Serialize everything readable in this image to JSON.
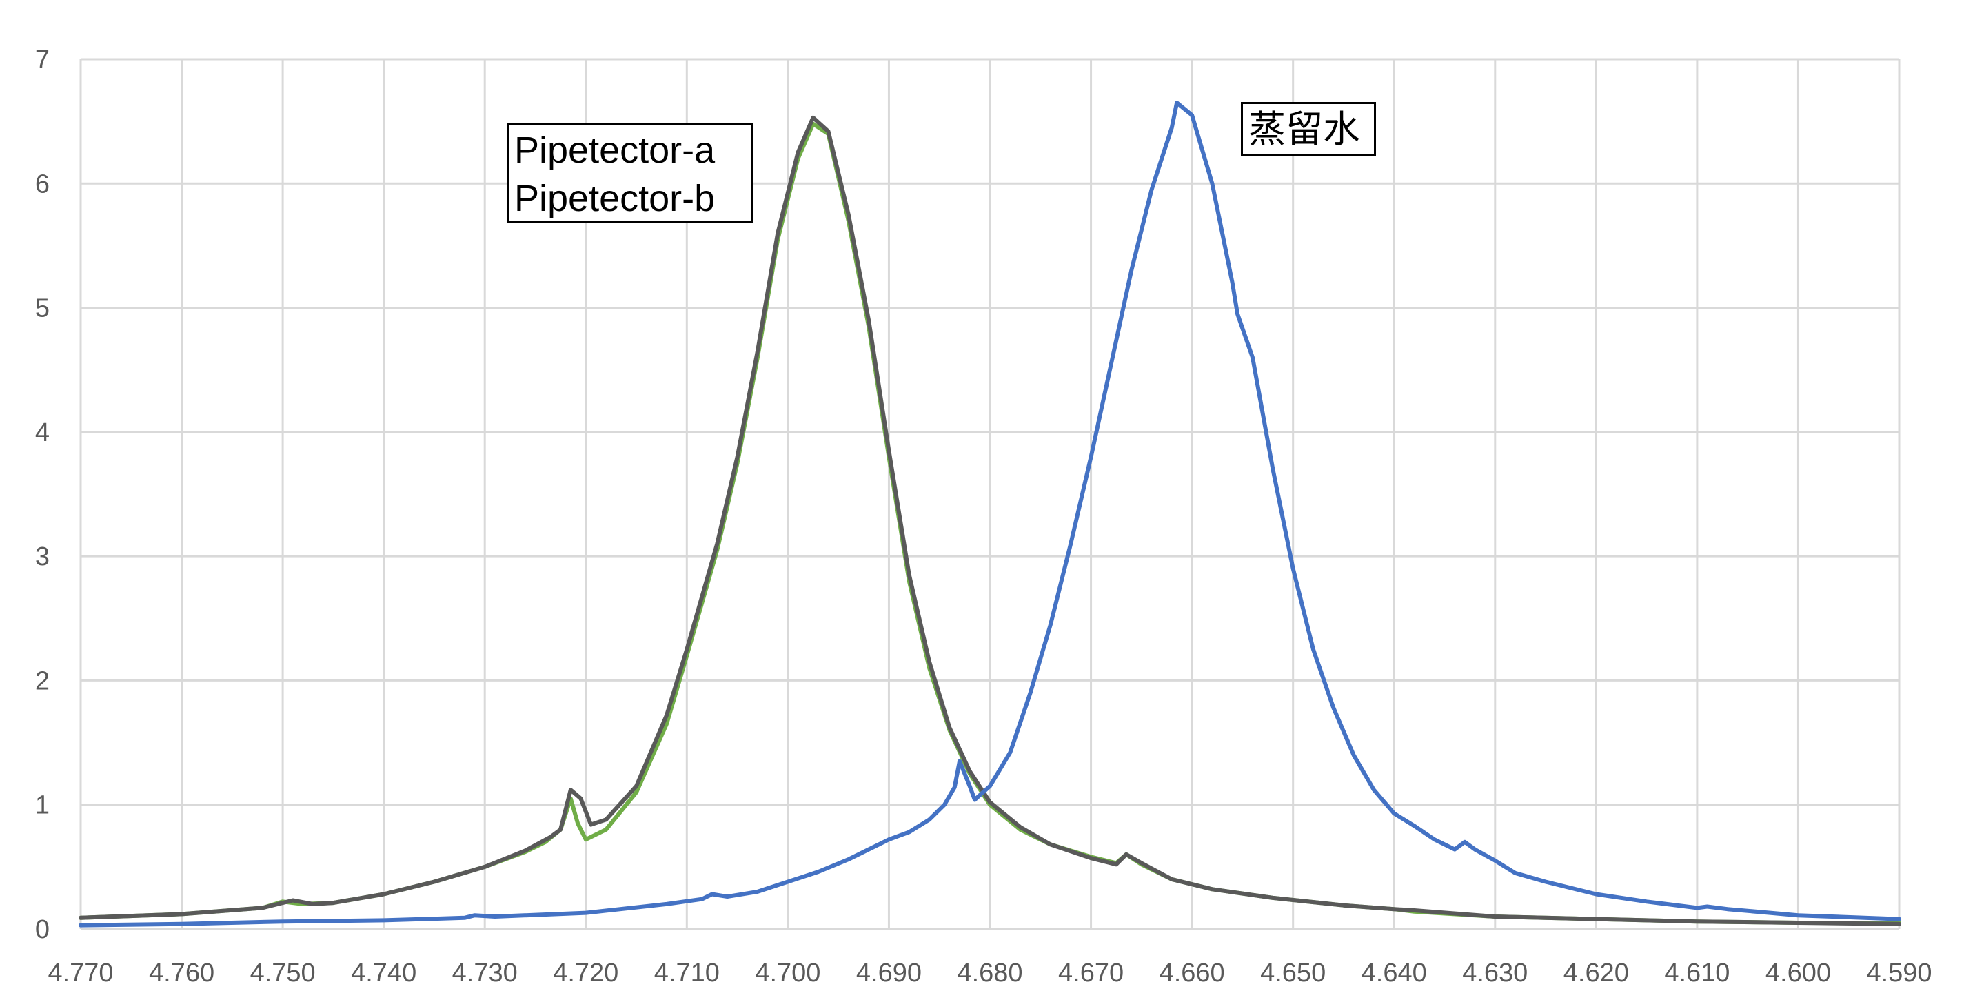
{
  "chart_data": {
    "type": "line",
    "title": "",
    "xlabel": "",
    "ylabel": "",
    "xlim": [
      4.77,
      4.59
    ],
    "ylim": [
      0,
      7
    ],
    "x_reversed": true,
    "grid": true,
    "x_ticks": [
      "4.770",
      "4.760",
      "4.750",
      "4.740",
      "4.730",
      "4.720",
      "4.710",
      "4.700",
      "4.690",
      "4.680",
      "4.670",
      "4.660",
      "4.650",
      "4.640",
      "4.630",
      "4.620",
      "4.610",
      "4.600",
      "4.590"
    ],
    "y_ticks": [
      "0",
      "1",
      "2",
      "3",
      "4",
      "5",
      "6",
      "7"
    ],
    "annotations": [
      {
        "lines": [
          "Pipetector-a",
          "Pipetector-b"
        ]
      },
      {
        "lines": [
          "蒸留水"
        ]
      }
    ],
    "series": [
      {
        "name": "Pipetector-a",
        "color": "#70ad47",
        "points": [
          [
            4.77,
            0.09
          ],
          [
            4.76,
            0.12
          ],
          [
            4.752,
            0.17
          ],
          [
            4.75,
            0.22
          ],
          [
            4.748,
            0.2
          ],
          [
            4.745,
            0.21
          ],
          [
            4.74,
            0.28
          ],
          [
            4.735,
            0.38
          ],
          [
            4.73,
            0.5
          ],
          [
            4.726,
            0.62
          ],
          [
            4.724,
            0.7
          ],
          [
            4.7225,
            0.8
          ],
          [
            4.7215,
            1.05
          ],
          [
            4.7208,
            0.85
          ],
          [
            4.72,
            0.72
          ],
          [
            4.718,
            0.8
          ],
          [
            4.715,
            1.1
          ],
          [
            4.712,
            1.65
          ],
          [
            4.71,
            2.2
          ],
          [
            4.707,
            3.05
          ],
          [
            4.705,
            3.75
          ],
          [
            4.703,
            4.6
          ],
          [
            4.701,
            5.55
          ],
          [
            4.699,
            6.2
          ],
          [
            4.6975,
            6.48
          ],
          [
            4.696,
            6.4
          ],
          [
            4.694,
            5.7
          ],
          [
            4.692,
            4.85
          ],
          [
            4.69,
            3.8
          ],
          [
            4.688,
            2.8
          ],
          [
            4.686,
            2.1
          ],
          [
            4.684,
            1.6
          ],
          [
            4.682,
            1.25
          ],
          [
            4.68,
            1.0
          ],
          [
            4.677,
            0.8
          ],
          [
            4.674,
            0.68
          ],
          [
            4.67,
            0.58
          ],
          [
            4.6675,
            0.53
          ],
          [
            4.6665,
            0.6
          ],
          [
            4.665,
            0.52
          ],
          [
            4.662,
            0.4
          ],
          [
            4.658,
            0.32
          ],
          [
            4.652,
            0.25
          ],
          [
            4.645,
            0.19
          ],
          [
            4.64,
            0.16
          ],
          [
            4.638,
            0.14
          ],
          [
            4.63,
            0.1
          ],
          [
            4.62,
            0.08
          ],
          [
            4.61,
            0.06
          ],
          [
            4.6,
            0.05
          ],
          [
            4.59,
            0.05
          ]
        ]
      },
      {
        "name": "Pipetector-b",
        "color": "#595959",
        "points": [
          [
            4.77,
            0.09
          ],
          [
            4.76,
            0.12
          ],
          [
            4.752,
            0.17
          ],
          [
            4.749,
            0.23
          ],
          [
            4.747,
            0.2
          ],
          [
            4.745,
            0.21
          ],
          [
            4.74,
            0.28
          ],
          [
            4.735,
            0.38
          ],
          [
            4.73,
            0.5
          ],
          [
            4.726,
            0.63
          ],
          [
            4.7235,
            0.74
          ],
          [
            4.7225,
            0.8
          ],
          [
            4.7215,
            1.12
          ],
          [
            4.7205,
            1.05
          ],
          [
            4.7195,
            0.84
          ],
          [
            4.718,
            0.88
          ],
          [
            4.715,
            1.15
          ],
          [
            4.712,
            1.72
          ],
          [
            4.71,
            2.25
          ],
          [
            4.707,
            3.1
          ],
          [
            4.705,
            3.8
          ],
          [
            4.703,
            4.65
          ],
          [
            4.701,
            5.6
          ],
          [
            4.699,
            6.25
          ],
          [
            4.6975,
            6.53
          ],
          [
            4.696,
            6.42
          ],
          [
            4.694,
            5.75
          ],
          [
            4.692,
            4.9
          ],
          [
            4.69,
            3.85
          ],
          [
            4.688,
            2.85
          ],
          [
            4.686,
            2.15
          ],
          [
            4.684,
            1.62
          ],
          [
            4.682,
            1.27
          ],
          [
            4.68,
            1.02
          ],
          [
            4.677,
            0.82
          ],
          [
            4.674,
            0.68
          ],
          [
            4.67,
            0.57
          ],
          [
            4.6675,
            0.52
          ],
          [
            4.6665,
            0.6
          ],
          [
            4.665,
            0.53
          ],
          [
            4.662,
            0.4
          ],
          [
            4.658,
            0.32
          ],
          [
            4.652,
            0.25
          ],
          [
            4.645,
            0.19
          ],
          [
            4.64,
            0.16
          ],
          [
            4.638,
            0.15
          ],
          [
            4.63,
            0.1
          ],
          [
            4.62,
            0.08
          ],
          [
            4.61,
            0.06
          ],
          [
            4.6,
            0.05
          ],
          [
            4.59,
            0.04
          ]
        ]
      },
      {
        "name": "蒸留水",
        "color": "#4472c4",
        "points": [
          [
            4.77,
            0.03
          ],
          [
            4.76,
            0.04
          ],
          [
            4.75,
            0.06
          ],
          [
            4.74,
            0.07
          ],
          [
            4.732,
            0.09
          ],
          [
            4.731,
            0.11
          ],
          [
            4.729,
            0.1
          ],
          [
            4.72,
            0.13
          ],
          [
            4.712,
            0.2
          ],
          [
            4.7085,
            0.24
          ],
          [
            4.7075,
            0.28
          ],
          [
            4.706,
            0.26
          ],
          [
            4.703,
            0.3
          ],
          [
            4.7,
            0.38
          ],
          [
            4.697,
            0.46
          ],
          [
            4.694,
            0.56
          ],
          [
            4.691,
            0.68
          ],
          [
            4.69,
            0.72
          ],
          [
            4.688,
            0.78
          ],
          [
            4.686,
            0.88
          ],
          [
            4.6845,
            1.0
          ],
          [
            4.6835,
            1.14
          ],
          [
            4.683,
            1.35
          ],
          [
            4.682,
            1.15
          ],
          [
            4.6815,
            1.04
          ],
          [
            4.68,
            1.15
          ],
          [
            4.678,
            1.42
          ],
          [
            4.676,
            1.9
          ],
          [
            4.674,
            2.45
          ],
          [
            4.672,
            3.1
          ],
          [
            4.67,
            3.8
          ],
          [
            4.668,
            4.55
          ],
          [
            4.666,
            5.3
          ],
          [
            4.664,
            5.95
          ],
          [
            4.662,
            6.45
          ],
          [
            4.6615,
            6.65
          ],
          [
            4.66,
            6.55
          ],
          [
            4.658,
            6.0
          ],
          [
            4.656,
            5.2
          ],
          [
            4.6555,
            4.95
          ],
          [
            4.654,
            4.6
          ],
          [
            4.652,
            3.7
          ],
          [
            4.65,
            2.9
          ],
          [
            4.648,
            2.25
          ],
          [
            4.646,
            1.78
          ],
          [
            4.644,
            1.4
          ],
          [
            4.642,
            1.12
          ],
          [
            4.64,
            0.93
          ],
          [
            4.638,
            0.83
          ],
          [
            4.636,
            0.72
          ],
          [
            4.634,
            0.64
          ],
          [
            4.633,
            0.7
          ],
          [
            4.632,
            0.64
          ],
          [
            4.63,
            0.55
          ],
          [
            4.628,
            0.45
          ],
          [
            4.625,
            0.38
          ],
          [
            4.62,
            0.28
          ],
          [
            4.615,
            0.22
          ],
          [
            4.61,
            0.17
          ],
          [
            4.609,
            0.18
          ],
          [
            4.607,
            0.16
          ],
          [
            4.6,
            0.11
          ],
          [
            4.59,
            0.08
          ]
        ]
      }
    ]
  }
}
